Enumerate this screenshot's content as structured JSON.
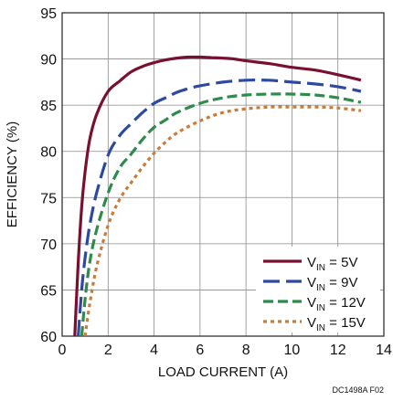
{
  "chart_data": {
    "type": "line",
    "title": "",
    "xlabel": "LOAD CURRENT (A)",
    "ylabel": "EFFICIENCY (%)",
    "xlim": [
      0,
      14
    ],
    "ylim": [
      60,
      95
    ],
    "xticks": [
      0,
      2,
      4,
      6,
      8,
      10,
      12,
      14
    ],
    "yticks": [
      60,
      65,
      70,
      75,
      80,
      85,
      90,
      95
    ],
    "grid": true,
    "legend_position": "bottom-right",
    "figure_id": "DC1498A F02",
    "series": [
      {
        "name": "V_IN = 5V",
        "legend": {
          "prefix": "V",
          "sub": "IN",
          "suffix": " = 5V"
        },
        "color": "#7a1030",
        "dash": "solid",
        "x": [
          0.55,
          0.7,
          0.85,
          1.0,
          1.2,
          1.5,
          2.0,
          2.5,
          3.0,
          3.5,
          4.0,
          4.5,
          5.0,
          5.5,
          6.0,
          6.5,
          7.0,
          7.5,
          8.0,
          9.0,
          10.0,
          11.0,
          12.0,
          13.0
        ],
        "y": [
          60.0,
          68.0,
          74.0,
          77.8,
          81.3,
          84.0,
          86.5,
          87.6,
          88.6,
          89.2,
          89.6,
          89.9,
          90.1,
          90.2,
          90.2,
          90.15,
          90.1,
          90.0,
          89.8,
          89.5,
          89.1,
          88.8,
          88.3,
          87.7
        ]
      },
      {
        "name": "V_IN = 9V",
        "legend": {
          "prefix": "V",
          "sub": "IN",
          "suffix": " = 9V"
        },
        "color": "#2d4aa0",
        "dash": "long-dash",
        "x": [
          0.7,
          0.85,
          1.0,
          1.2,
          1.5,
          2.0,
          2.5,
          3.0,
          3.5,
          4.0,
          4.5,
          5.0,
          5.5,
          6.0,
          7.0,
          8.0,
          9.0,
          10.0,
          11.0,
          12.0,
          13.0
        ],
        "y": [
          60.0,
          65.0,
          68.5,
          72.0,
          75.5,
          79.6,
          81.7,
          83.0,
          84.2,
          85.2,
          85.8,
          86.4,
          86.8,
          87.1,
          87.5,
          87.7,
          87.7,
          87.5,
          87.3,
          87.0,
          86.5
        ]
      },
      {
        "name": "V_IN = 12V",
        "legend": {
          "prefix": "V",
          "sub": "IN",
          "suffix": " = 12V"
        },
        "color": "#2e8b4b",
        "dash": "dash",
        "x": [
          0.85,
          1.0,
          1.2,
          1.5,
          2.0,
          2.5,
          3.0,
          3.5,
          4.0,
          4.5,
          5.0,
          6.0,
          7.0,
          8.0,
          9.0,
          10.0,
          11.0,
          12.0,
          13.0
        ],
        "y": [
          60.0,
          64.0,
          68.0,
          71.5,
          75.5,
          78.2,
          79.7,
          81.3,
          82.6,
          83.4,
          84.2,
          85.2,
          85.8,
          86.1,
          86.2,
          86.2,
          86.1,
          85.8,
          85.3
        ]
      },
      {
        "name": "V_IN = 15V",
        "legend": {
          "prefix": "V",
          "sub": "IN",
          "suffix": " = 15V"
        },
        "color": "#c87c3c",
        "dash": "dot",
        "x": [
          1.0,
          1.2,
          1.5,
          2.0,
          2.5,
          3.0,
          3.5,
          4.0,
          4.5,
          5.0,
          6.0,
          7.0,
          8.0,
          9.0,
          10.0,
          11.0,
          12.0,
          13.0
        ],
        "y": [
          60.0,
          63.5,
          67.5,
          72.0,
          74.8,
          76.6,
          78.3,
          79.8,
          81.0,
          82.0,
          83.3,
          84.2,
          84.6,
          84.8,
          84.8,
          84.8,
          84.7,
          84.4
        ]
      }
    ]
  }
}
